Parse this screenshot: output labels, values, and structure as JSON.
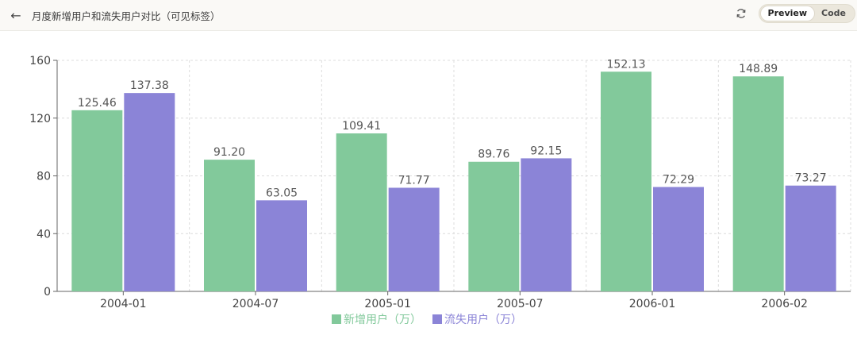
{
  "header": {
    "title": "月度新增用户和流失用户对比（可见标签）",
    "tabs": [
      {
        "label": "Preview",
        "active": true
      },
      {
        "label": "Code",
        "active": false
      }
    ]
  },
  "icons": {
    "back": "arrow-left-icon",
    "refresh": "refresh-icon"
  },
  "chart_data": {
    "type": "bar",
    "title": "",
    "xlabel": "",
    "ylabel": "",
    "categories": [
      "2004-01",
      "2004-07",
      "2005-01",
      "2005-07",
      "2006-01",
      "2006-02"
    ],
    "series": [
      {
        "name": "新增用户（万）",
        "color": "#82c99b",
        "values": [
          125.46,
          91.2,
          109.41,
          89.76,
          152.13,
          148.89
        ]
      },
      {
        "name": "流失用户（万）",
        "color": "#8b84d7",
        "values": [
          137.38,
          63.05,
          71.77,
          92.15,
          72.29,
          73.27
        ]
      }
    ],
    "ylim": [
      0,
      160
    ],
    "yticks": [
      "0",
      "40",
      "80",
      "120",
      "160"
    ],
    "grid": true,
    "data_labels": true,
    "legend_position": "bottom-center"
  }
}
